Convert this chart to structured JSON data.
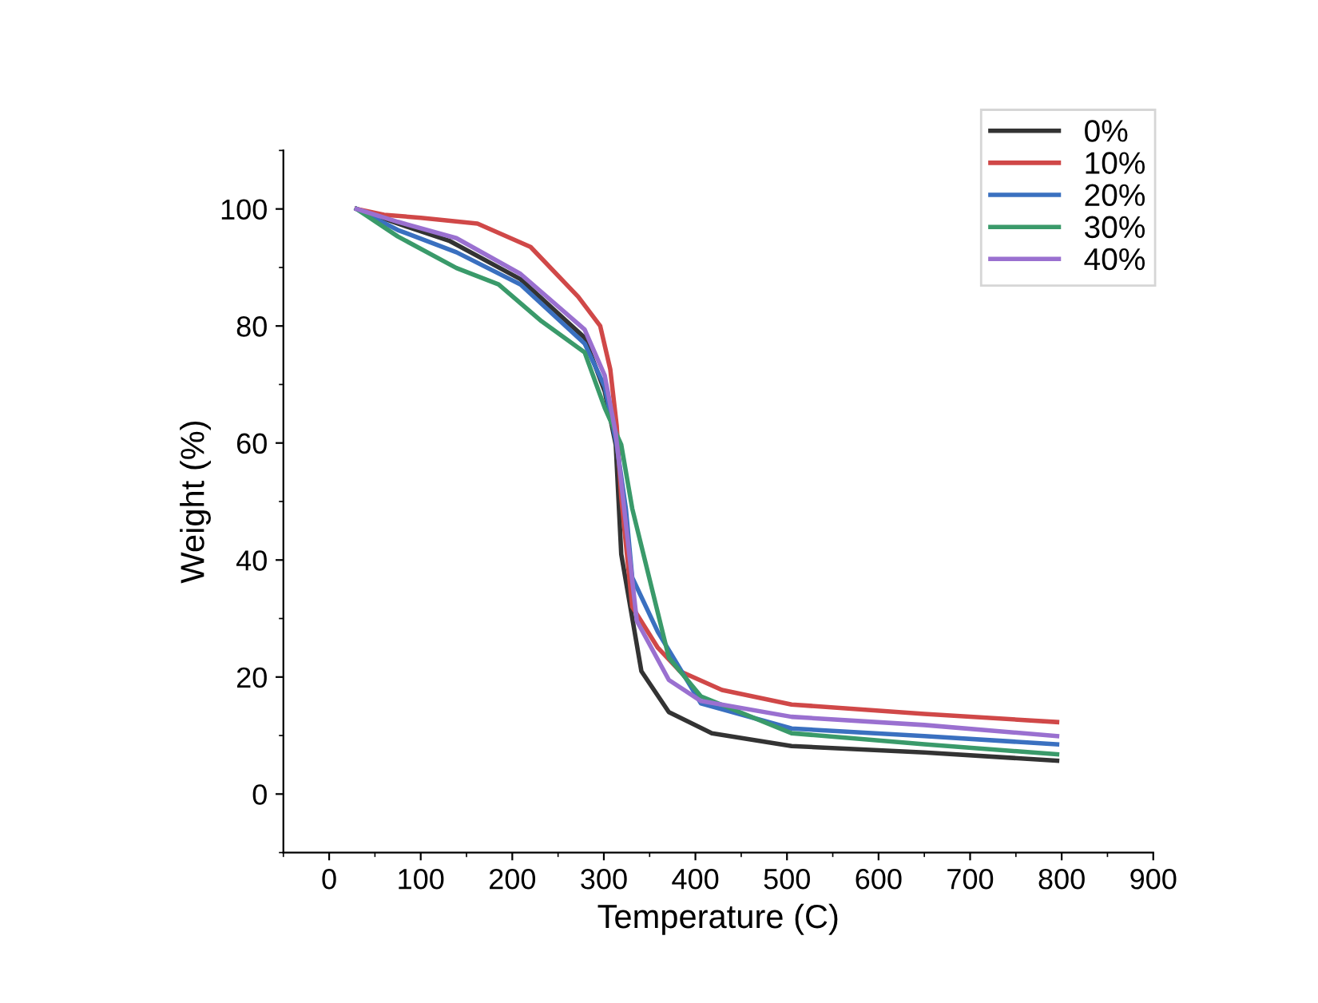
{
  "chart_data": {
    "type": "line",
    "xlabel": "Temperature (C)",
    "ylabel": "Weight (%)",
    "xlim": [
      -50,
      900
    ],
    "ylim": [
      -10,
      110
    ],
    "xticks": [
      0,
      100,
      200,
      300,
      400,
      500,
      600,
      700,
      800,
      900
    ],
    "yticks": [
      0,
      20,
      40,
      60,
      80,
      100
    ],
    "grid": false,
    "legend": "top right",
    "line_style": "solid",
    "marker": "none",
    "series": [
      {
        "name": "0%",
        "color": "#333333",
        "x": [
          30,
          75,
          132,
          209,
          279,
          301,
          313,
          319,
          341,
          371,
          418,
          505,
          650,
          795
        ],
        "values": [
          100,
          97.5,
          94.5,
          88,
          78,
          68.8,
          59.7,
          41,
          21,
          14,
          10.4,
          8.2,
          7.1,
          5.7
        ]
      },
      {
        "name": "10%",
        "color": "#d04848",
        "x": [
          30,
          60,
          100,
          162,
          220,
          272,
          296,
          307,
          314,
          319,
          331,
          359,
          383,
          429,
          505,
          650,
          795
        ],
        "values": [
          100,
          99,
          98.5,
          97.5,
          93.5,
          85,
          80,
          72.6,
          63,
          50.7,
          32,
          25,
          21,
          17.8,
          15.3,
          13.7,
          12.3
        ]
      },
      {
        "name": "20%",
        "color": "#3a70c0",
        "x": [
          30,
          75,
          139,
          209,
          279,
          301,
          314,
          324,
          331,
          359,
          406,
          505,
          650,
          795
        ],
        "values": [
          100,
          96.4,
          92.6,
          87.1,
          77,
          69.6,
          59.7,
          48.8,
          37,
          27.7,
          15.5,
          11.2,
          9.9,
          8.5
        ]
      },
      {
        "name": "30%",
        "color": "#3a9a6a",
        "x": [
          30,
          75,
          139,
          185,
          232,
          279,
          301,
          319,
          331,
          371,
          406,
          505,
          650,
          795
        ],
        "values": [
          100,
          95.3,
          89.9,
          87.1,
          80.8,
          75.5,
          66,
          59.7,
          48.8,
          23.3,
          16.7,
          10.4,
          8.5,
          6.8
        ]
      },
      {
        "name": "40%",
        "color": "#9a70d0",
        "x": [
          30,
          75,
          139,
          209,
          279,
          301,
          313,
          336,
          371,
          406,
          505,
          650,
          795
        ],
        "values": [
          100,
          97.8,
          95,
          88.9,
          79.4,
          71.5,
          61.6,
          29.6,
          19.5,
          15.9,
          13.2,
          11.8,
          9.9
        ]
      }
    ]
  }
}
